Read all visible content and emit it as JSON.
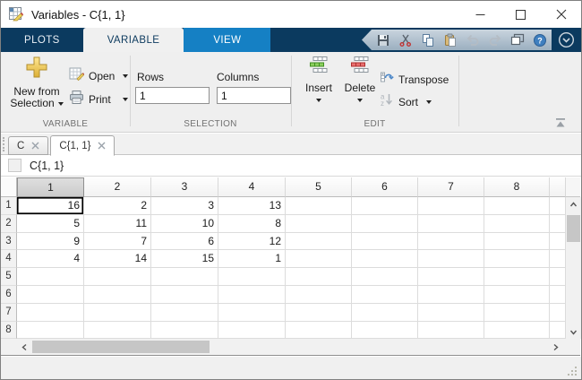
{
  "window": {
    "title": "Variables - C{1, 1}",
    "icon": "variables-editor-icon"
  },
  "ribbon": {
    "tabs": [
      {
        "label": "PLOTS",
        "state": "normal"
      },
      {
        "label": "VARIABLE",
        "state": "active"
      },
      {
        "label": "VIEW",
        "state": "highlight"
      }
    ],
    "quick_access": [
      "save-icon",
      "cut-icon",
      "copy-icon",
      "paste-icon",
      "undo-icon",
      "redo-icon",
      "windows-icon",
      "help-icon",
      "qa-dropdown-icon"
    ],
    "groups": {
      "variable": {
        "label": "VARIABLE",
        "new_from_selection_line1": "New from",
        "new_from_selection_line2": "Selection",
        "open_label": "Open",
        "print_label": "Print"
      },
      "selection": {
        "label": "SELECTION",
        "rows_label": "Rows",
        "rows_value": "1",
        "columns_label": "Columns",
        "columns_value": "1"
      },
      "edit": {
        "label": "EDIT",
        "insert_label": "Insert",
        "delete_label": "Delete",
        "transpose_label": "Transpose",
        "sort_label": "Sort"
      }
    }
  },
  "doc_tabs": [
    {
      "label": "C",
      "active": false
    },
    {
      "label": "C{1, 1}",
      "active": true
    }
  ],
  "breadcrumb": "C{1, 1}",
  "table": {
    "col_headers": [
      "1",
      "2",
      "3",
      "4",
      "5",
      "6",
      "7",
      "8"
    ],
    "row_headers": [
      "1",
      "2",
      "3",
      "4",
      "5",
      "6",
      "7",
      "8"
    ],
    "values": [
      [
        16,
        2,
        3,
        13
      ],
      [
        5,
        11,
        10,
        8
      ],
      [
        9,
        7,
        6,
        12
      ],
      [
        4,
        14,
        15,
        1
      ],
      [],
      [],
      [],
      []
    ],
    "selected_cell": {
      "row": 0,
      "col": 0
    },
    "selected_col_header": 0
  },
  "colors": {
    "ribbon_navy": "#0b3a5f",
    "view_tab_blue": "#1580c4",
    "active_tab_gray": "#f0f0f0",
    "insert_green": "#8ccf5f",
    "delete_red": "#e87070",
    "gold_plus": "#e8c04a",
    "grid_line": "#dcdcdc",
    "selected_header_gray": "#cbcbcb"
  }
}
